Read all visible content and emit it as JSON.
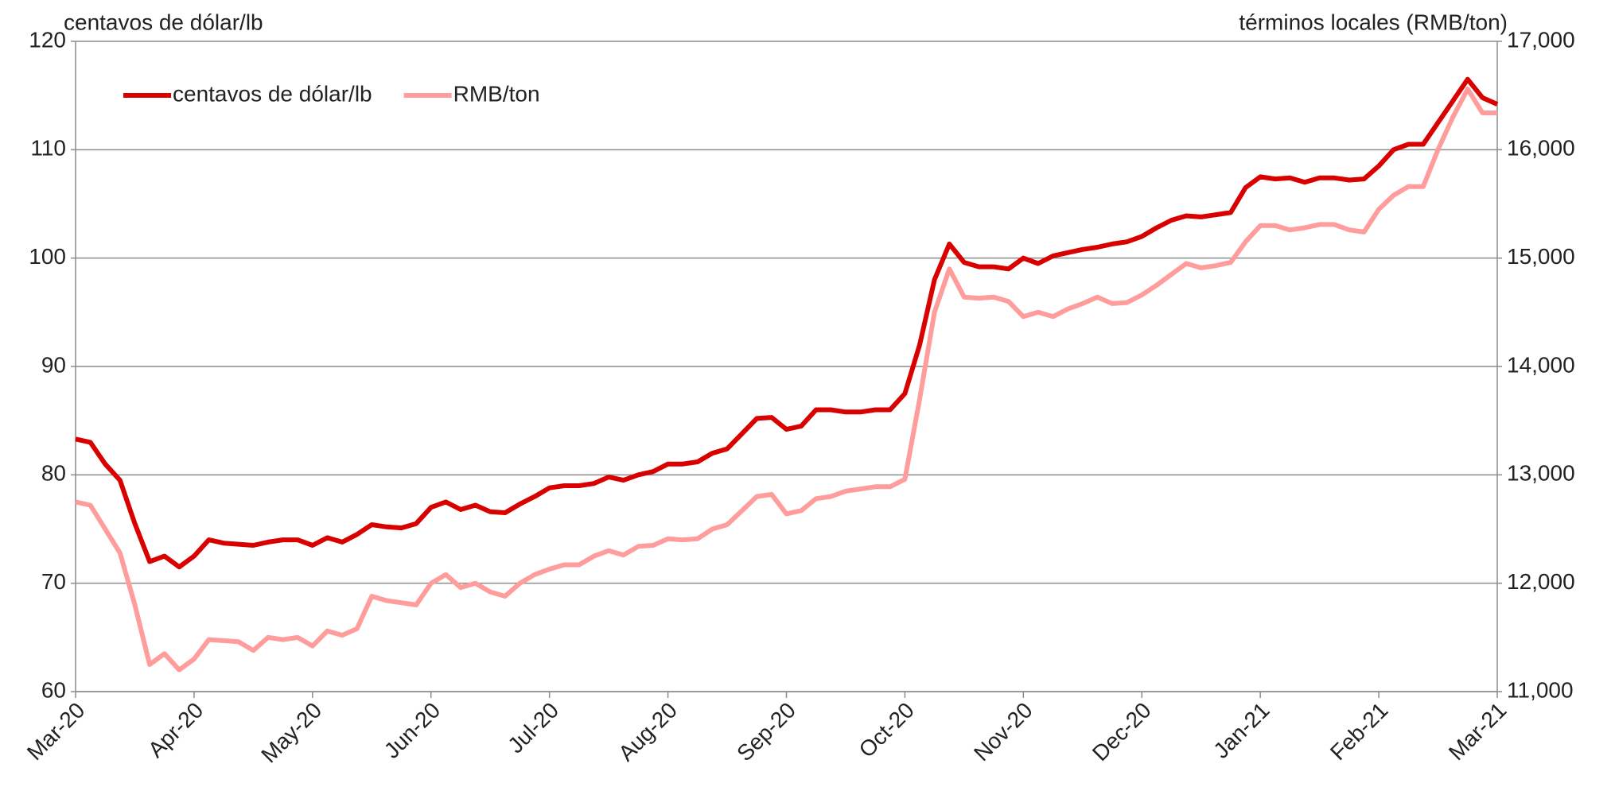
{
  "chart_data": {
    "type": "line",
    "y_label": "centavos de dólar/lb",
    "y2_label": "términos locales (RMB/ton)",
    "categories": [
      "Mar-20",
      null,
      null,
      null,
      null,
      null,
      null,
      null,
      "Apr-20",
      null,
      null,
      null,
      null,
      null,
      null,
      null,
      "May-20",
      null,
      null,
      null,
      null,
      null,
      null,
      null,
      "Jun-20",
      null,
      null,
      null,
      null,
      null,
      null,
      null,
      "Jul-20",
      null,
      null,
      null,
      null,
      null,
      null,
      null,
      "Aug-20",
      null,
      null,
      null,
      null,
      null,
      null,
      null,
      "Sep-20",
      null,
      null,
      null,
      null,
      null,
      null,
      null,
      "Oct-20",
      null,
      null,
      null,
      null,
      null,
      null,
      null,
      "Nov-20",
      null,
      null,
      null,
      null,
      null,
      null,
      null,
      "Dec-20",
      null,
      null,
      null,
      null,
      null,
      null,
      null,
      "Jan-21",
      null,
      null,
      null,
      null,
      null,
      null,
      null,
      "Feb-21",
      null,
      null,
      null,
      null,
      null,
      null,
      null,
      "Mar-21"
    ],
    "series": [
      {
        "name": "centavos de dólar/lb",
        "color": "#d90000",
        "axis": "y",
        "values": [
          83.3,
          83,
          81,
          79.5,
          75.5,
          72,
          72.5,
          71.5,
          72.5,
          74,
          73.7,
          73.6,
          73.5,
          73.8,
          74,
          74,
          73.5,
          74.2,
          73.8,
          74.5,
          75.4,
          75.2,
          75.1,
          75.5,
          77,
          77.5,
          76.8,
          77.2,
          76.6,
          76.5,
          77.3,
          78,
          78.8,
          79,
          79,
          79.2,
          79.8,
          79.5,
          80,
          80.3,
          81,
          81,
          81.2,
          82,
          82.4,
          83.8,
          85.2,
          85.3,
          84.2,
          84.5,
          86,
          86,
          85.8,
          85.8,
          86,
          86,
          87.5,
          92,
          98,
          101.3,
          99.6,
          99.2,
          99.2,
          99,
          100,
          99.5,
          100.2,
          100.5,
          100.8,
          101,
          101.3,
          101.5,
          102,
          102.8,
          103.5,
          103.9,
          103.8,
          104,
          104.2,
          106.5,
          107.5,
          107.3,
          107.4,
          107,
          107.4,
          107.4,
          107.2,
          107.3,
          108.5,
          110,
          110.5,
          110.5,
          112.5,
          114.5,
          116.5,
          114.8,
          114.2
        ]
      },
      {
        "name": "RMB/ton",
        "color": "#ff9c9c",
        "axis": "y2",
        "values": [
          12750,
          12720,
          12500,
          12280,
          11800,
          11250,
          11350,
          11200,
          11300,
          11480,
          11470,
          11460,
          11380,
          11500,
          11480,
          11500,
          11420,
          11560,
          11520,
          11580,
          11880,
          11840,
          11820,
          11800,
          12000,
          12080,
          11960,
          12000,
          11920,
          11880,
          12000,
          12080,
          12130,
          12170,
          12170,
          12250,
          12300,
          12260,
          12340,
          12350,
          12410,
          12400,
          12410,
          12500,
          12540,
          12670,
          12800,
          12820,
          12640,
          12670,
          12780,
          12800,
          12850,
          12870,
          12890,
          12890,
          12960,
          13700,
          14500,
          14900,
          14640,
          14630,
          14640,
          14600,
          14460,
          14500,
          14460,
          14530,
          14580,
          14640,
          14580,
          14590,
          14660,
          14750,
          14850,
          14950,
          14910,
          14930,
          14960,
          15150,
          15300,
          15300,
          15260,
          15280,
          15310,
          15310,
          15260,
          15240,
          15450,
          15580,
          15660,
          15660,
          16000,
          16300,
          16560,
          16340,
          16340
        ]
      }
    ],
    "ylim": [
      60,
      120
    ],
    "yticks": [
      60,
      70,
      80,
      90,
      100,
      110,
      120
    ],
    "y2lim": [
      11000,
      17000
    ],
    "y2ticks": [
      {
        "value": 11000,
        "label": "11,000"
      },
      {
        "value": 12000,
        "label": "12,000"
      },
      {
        "value": 13000,
        "label": "13,000"
      },
      {
        "value": 14000,
        "label": "14,000"
      },
      {
        "value": 15000,
        "label": "15,000"
      },
      {
        "value": 16000,
        "label": "16,000"
      },
      {
        "value": 17000,
        "label": "17,000"
      }
    ],
    "grid": true,
    "legend": "upper left"
  }
}
